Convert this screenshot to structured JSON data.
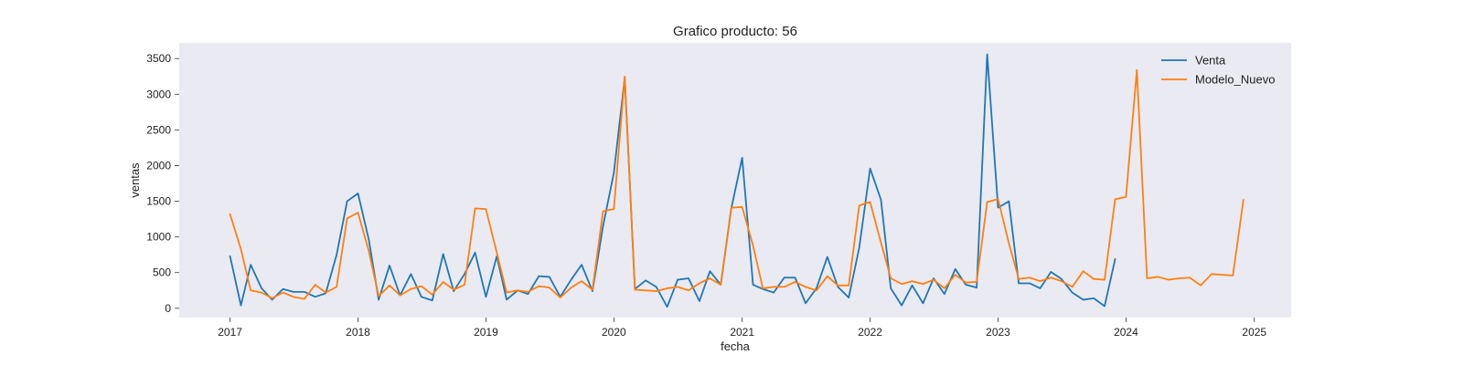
{
  "chart_data": {
    "type": "line",
    "title": "Grafico producto: 56",
    "xlabel": "fecha",
    "ylabel": "ventas",
    "xlim": [
      "2016-08-09",
      "2025-04-16"
    ],
    "ylim": [
      -130,
      3720
    ],
    "x_ticks": [
      "2017",
      "2018",
      "2019",
      "2020",
      "2021",
      "2022",
      "2023",
      "2024",
      "2025"
    ],
    "y_ticks": [
      "0",
      "500",
      "1000",
      "1500",
      "2000",
      "2500",
      "3000",
      "3500"
    ],
    "grid": false,
    "background": "#eaeaf2",
    "legend_position": "top-right",
    "series": [
      {
        "name": "Venta",
        "color": "#1f77b4",
        "x": [
          "2017-01",
          "2017-02",
          "2017-03",
          "2017-04",
          "2017-05",
          "2017-06",
          "2017-07",
          "2017-08",
          "2017-09",
          "2017-10",
          "2017-11",
          "2017-12",
          "2018-01",
          "2018-02",
          "2018-03",
          "2018-04",
          "2018-05",
          "2018-06",
          "2018-07",
          "2018-08",
          "2018-09",
          "2018-10",
          "2018-11",
          "2018-12",
          "2019-01",
          "2019-02",
          "2019-03",
          "2019-04",
          "2019-05",
          "2019-06",
          "2019-07",
          "2019-08",
          "2019-09",
          "2019-10",
          "2019-11",
          "2019-12",
          "2020-01",
          "2020-02",
          "2020-03",
          "2020-04",
          "2020-05",
          "2020-06",
          "2020-07",
          "2020-08",
          "2020-09",
          "2020-10",
          "2020-11",
          "2020-12",
          "2021-01",
          "2021-02",
          "2021-03",
          "2021-04",
          "2021-05",
          "2021-06",
          "2021-07",
          "2021-08",
          "2021-09",
          "2021-10",
          "2021-11",
          "2021-12",
          "2022-01",
          "2022-02",
          "2022-03",
          "2022-04",
          "2022-05",
          "2022-06",
          "2022-07",
          "2022-08",
          "2022-09",
          "2022-10",
          "2022-11",
          "2022-12",
          "2023-01",
          "2023-02",
          "2023-03",
          "2023-04",
          "2023-05",
          "2023-06",
          "2023-07",
          "2023-08",
          "2023-09",
          "2023-10",
          "2023-11",
          "2023-12"
        ],
        "values": [
          730,
          40,
          610,
          280,
          120,
          270,
          230,
          230,
          160,
          210,
          750,
          1500,
          1610,
          960,
          120,
          600,
          180,
          480,
          160,
          110,
          760,
          240,
          480,
          780,
          160,
          730,
          120,
          250,
          200,
          450,
          440,
          160,
          400,
          610,
          240,
          1150,
          1900,
          3230,
          270,
          390,
          300,
          20,
          400,
          420,
          100,
          520,
          330,
          1400,
          2110,
          330,
          270,
          220,
          430,
          430,
          70,
          280,
          720,
          300,
          150,
          850,
          1960,
          1520,
          280,
          40,
          320,
          70,
          420,
          200,
          550,
          330,
          290,
          3560,
          1410,
          1500,
          350,
          350,
          280,
          510,
          410,
          220,
          120,
          140,
          30,
          690
        ]
      },
      {
        "name": "Modelo_Nuevo",
        "color": "#ff7f0e",
        "x": [
          "2017-01",
          "2017-02",
          "2017-03",
          "2017-04",
          "2017-05",
          "2017-06",
          "2017-07",
          "2017-08",
          "2017-09",
          "2017-10",
          "2017-11",
          "2017-12",
          "2018-01",
          "2018-02",
          "2018-03",
          "2018-04",
          "2018-05",
          "2018-06",
          "2018-07",
          "2018-08",
          "2018-09",
          "2018-10",
          "2018-11",
          "2018-12",
          "2019-01",
          "2019-02",
          "2019-03",
          "2019-04",
          "2019-05",
          "2019-06",
          "2019-07",
          "2019-08",
          "2019-09",
          "2019-10",
          "2019-11",
          "2019-12",
          "2020-01",
          "2020-02",
          "2020-03",
          "2020-04",
          "2020-05",
          "2020-06",
          "2020-07",
          "2020-08",
          "2020-09",
          "2020-10",
          "2020-11",
          "2020-12",
          "2021-01",
          "2021-02",
          "2021-03",
          "2021-04",
          "2021-05",
          "2021-06",
          "2021-07",
          "2021-08",
          "2021-09",
          "2021-10",
          "2021-11",
          "2021-12",
          "2022-01",
          "2022-02",
          "2022-03",
          "2022-04",
          "2022-05",
          "2022-06",
          "2022-07",
          "2022-08",
          "2022-09",
          "2022-10",
          "2022-11",
          "2022-12",
          "2023-01",
          "2023-02",
          "2023-03",
          "2023-04",
          "2023-05",
          "2023-06",
          "2023-07",
          "2023-08",
          "2023-09",
          "2023-10",
          "2023-11",
          "2023-12",
          "2024-01",
          "2024-02",
          "2024-03",
          "2024-04",
          "2024-05",
          "2024-06",
          "2024-07",
          "2024-08",
          "2024-09",
          "2024-10",
          "2024-11",
          "2024-12"
        ],
        "values": [
          1320,
          830,
          250,
          220,
          140,
          220,
          160,
          130,
          330,
          220,
          300,
          1260,
          1340,
          800,
          170,
          320,
          180,
          270,
          310,
          190,
          370,
          260,
          330,
          1400,
          1390,
          780,
          220,
          250,
          230,
          310,
          290,
          150,
          290,
          380,
          260,
          1360,
          1390,
          3250,
          260,
          250,
          240,
          280,
          300,
          250,
          350,
          420,
          330,
          1410,
          1420,
          880,
          280,
          300,
          300,
          370,
          300,
          250,
          450,
          320,
          320,
          1440,
          1490,
          920,
          420,
          340,
          380,
          340,
          400,
          280,
          470,
          360,
          370,
          1490,
          1530,
          910,
          410,
          430,
          380,
          430,
          380,
          300,
          520,
          410,
          400,
          1530,
          1560,
          3340,
          420,
          440,
          400,
          420,
          430,
          320,
          480,
          470,
          460,
          1520
        ]
      }
    ]
  }
}
